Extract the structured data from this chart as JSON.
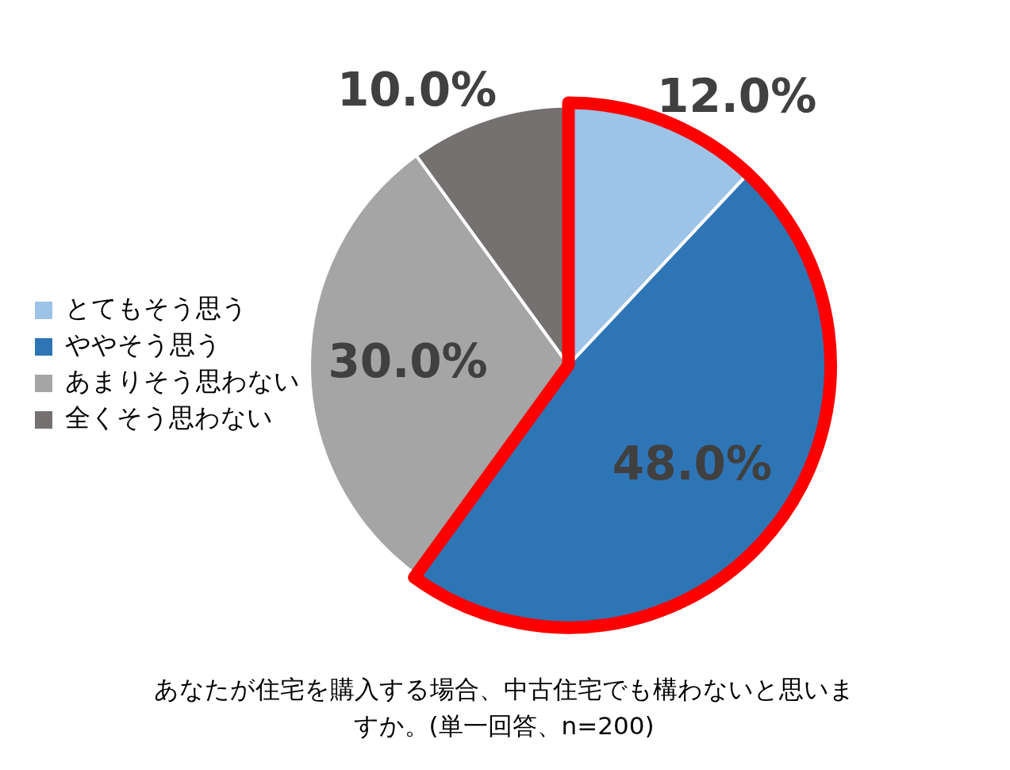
{
  "chart_data": {
    "type": "pie",
    "title": "あなたが住宅を購入する場合、中古住宅でも構わないと思いますか。(単一回答、n=200)",
    "categories": [
      "とてもそう思う",
      "ややそう思う",
      "あまりそう思わない",
      "全くそう思わない"
    ],
    "values": [
      12,
      48,
      30,
      10
    ],
    "value_labels": [
      "12.0%",
      "48.0%",
      "30.0%",
      "10.0%"
    ],
    "colors": [
      "#9dc3e6",
      "#2e75b6",
      "#a5a5a5",
      "#767171"
    ],
    "legend": "left"
  }
}
